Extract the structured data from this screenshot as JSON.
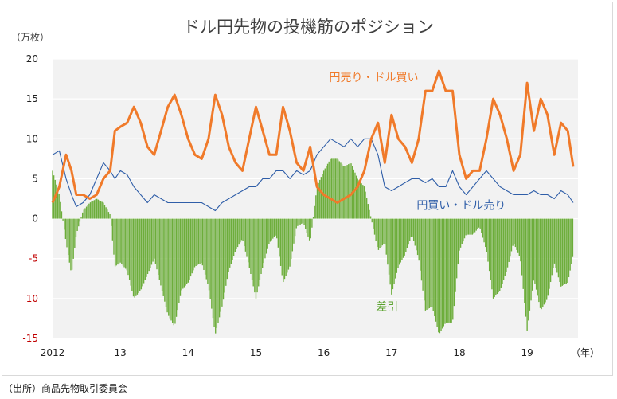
{
  "title": "ドル円先物の投機筋のポジション",
  "unit": "（万枚）",
  "source": "（出所）商品先物取引委員会",
  "colors": {
    "long_yen": "#f07a2a",
    "long_dollar": "#2f5ea8",
    "net": "#6cad3a",
    "plot_bg": "#f2f2f2",
    "grid": "#ffffff",
    "negative_tick": "#c00000"
  },
  "chart_data": {
    "type": "line",
    "title": "ドル円先物の投機筋のポジション",
    "ylabel": "（万枚）",
    "xlabel": "",
    "ylim": [
      -15,
      20
    ],
    "xlim": [
      2012.0,
      2019.75
    ],
    "y_ticks": [
      "20",
      "15",
      "10",
      "5",
      "0",
      "-5",
      "-10",
      "-15"
    ],
    "x_ticks": [
      {
        "year": 2012.0,
        "label": "2012"
      },
      {
        "year": 2013.0,
        "label": "13"
      },
      {
        "year": 2014.0,
        "label": "14"
      },
      {
        "year": 2015.0,
        "label": "15"
      },
      {
        "year": 2016.0,
        "label": "16"
      },
      {
        "year": 2017.0,
        "label": "17"
      },
      {
        "year": 2018.0,
        "label": "18"
      },
      {
        "year": 2019.0,
        "label": "19"
      }
    ],
    "x_unit_label": "（年）",
    "series": [
      {
        "name": "円売り・ドル買い",
        "style": "line",
        "x": [
          2012.0,
          2012.1,
          2012.2,
          2012.28,
          2012.35,
          2012.45,
          2012.55,
          2012.65,
          2012.75,
          2012.85,
          2012.92,
          2013.0,
          2013.1,
          2013.2,
          2013.3,
          2013.4,
          2013.5,
          2013.6,
          2013.7,
          2013.8,
          2013.9,
          2014.0,
          2014.1,
          2014.2,
          2014.3,
          2014.4,
          2014.5,
          2014.6,
          2014.7,
          2014.8,
          2014.9,
          2015.0,
          2015.1,
          2015.2,
          2015.3,
          2015.4,
          2015.5,
          2015.6,
          2015.7,
          2015.8,
          2015.9,
          2016.0,
          2016.1,
          2016.2,
          2016.3,
          2016.4,
          2016.5,
          2016.6,
          2016.7,
          2016.8,
          2016.9,
          2017.0,
          2017.1,
          2017.2,
          2017.3,
          2017.4,
          2017.5,
          2017.6,
          2017.7,
          2017.8,
          2017.9,
          2018.0,
          2018.1,
          2018.2,
          2018.3,
          2018.4,
          2018.5,
          2018.6,
          2018.7,
          2018.8,
          2018.9,
          2019.0,
          2019.1,
          2019.2,
          2019.3,
          2019.4,
          2019.5,
          2019.6,
          2019.68
        ],
        "values": [
          2,
          4,
          8,
          6,
          3,
          3,
          2.5,
          3,
          5,
          6,
          11,
          11.5,
          12,
          14,
          12,
          9,
          8,
          11,
          14,
          15.5,
          13,
          10,
          8,
          7.5,
          10,
          15.5,
          13,
          9,
          7,
          6,
          10,
          14,
          11,
          8,
          8,
          14,
          11,
          7,
          6,
          9,
          4,
          3,
          2.5,
          2,
          2.5,
          3,
          4,
          6,
          10,
          12,
          7,
          13,
          10,
          9,
          7,
          10,
          16,
          16,
          18.5,
          16,
          16,
          8,
          5,
          6,
          6,
          10,
          15,
          13,
          10,
          6,
          8,
          17,
          11,
          15,
          13,
          8,
          12,
          11,
          6.5
        ]
      },
      {
        "name": "円買い・ドル売り",
        "style": "line",
        "x": [
          2012.0,
          2012.1,
          2012.2,
          2012.28,
          2012.35,
          2012.45,
          2012.55,
          2012.65,
          2012.75,
          2012.85,
          2012.92,
          2013.0,
          2013.1,
          2013.2,
          2013.3,
          2013.4,
          2013.5,
          2013.6,
          2013.7,
          2013.8,
          2013.9,
          2014.0,
          2014.1,
          2014.2,
          2014.3,
          2014.4,
          2014.5,
          2014.6,
          2014.7,
          2014.8,
          2014.9,
          2015.0,
          2015.1,
          2015.2,
          2015.3,
          2015.4,
          2015.5,
          2015.6,
          2015.7,
          2015.8,
          2015.9,
          2016.0,
          2016.1,
          2016.2,
          2016.3,
          2016.4,
          2016.5,
          2016.6,
          2016.7,
          2016.8,
          2016.9,
          2017.0,
          2017.1,
          2017.2,
          2017.3,
          2017.4,
          2017.5,
          2017.6,
          2017.7,
          2017.8,
          2017.9,
          2018.0,
          2018.1,
          2018.2,
          2018.3,
          2018.4,
          2018.5,
          2018.6,
          2018.7,
          2018.8,
          2018.9,
          2019.0,
          2019.1,
          2019.2,
          2019.3,
          2019.4,
          2019.5,
          2019.6,
          2019.68
        ],
        "values": [
          8,
          8.5,
          5,
          3,
          1.5,
          2,
          3,
          5,
          7,
          6,
          5,
          6,
          5.5,
          4,
          3,
          2,
          3,
          2.5,
          2,
          2,
          2,
          2,
          2,
          2,
          1.5,
          1,
          2,
          2.5,
          3,
          3.5,
          4,
          4,
          5,
          5,
          6,
          6,
          5,
          6,
          5.5,
          6,
          8,
          9,
          10,
          9.5,
          9,
          10,
          9,
          10,
          10,
          8,
          4,
          3.5,
          4,
          4.5,
          5,
          5,
          4.5,
          5,
          4,
          4,
          6,
          4,
          3,
          4,
          5,
          6,
          5,
          4,
          3.5,
          3,
          3,
          3,
          3.5,
          3,
          3,
          2.5,
          3.5,
          3,
          2
        ]
      },
      {
        "name": "差引",
        "style": "bar",
        "x": [
          2012.0,
          2012.1,
          2012.2,
          2012.28,
          2012.35,
          2012.45,
          2012.55,
          2012.65,
          2012.75,
          2012.85,
          2012.92,
          2013.0,
          2013.1,
          2013.2,
          2013.3,
          2013.4,
          2013.5,
          2013.6,
          2013.7,
          2013.8,
          2013.9,
          2014.0,
          2014.1,
          2014.2,
          2014.3,
          2014.4,
          2014.5,
          2014.6,
          2014.7,
          2014.8,
          2014.9,
          2015.0,
          2015.1,
          2015.2,
          2015.3,
          2015.4,
          2015.5,
          2015.6,
          2015.7,
          2015.8,
          2015.9,
          2016.0,
          2016.1,
          2016.2,
          2016.3,
          2016.4,
          2016.5,
          2016.6,
          2016.7,
          2016.8,
          2016.9,
          2017.0,
          2017.1,
          2017.2,
          2017.3,
          2017.4,
          2017.5,
          2017.6,
          2017.7,
          2017.8,
          2017.9,
          2018.0,
          2018.1,
          2018.2,
          2018.3,
          2018.4,
          2018.5,
          2018.6,
          2018.7,
          2018.8,
          2018.9,
          2019.0,
          2019.1,
          2019.2,
          2019.3,
          2019.4,
          2019.5,
          2019.6,
          2019.68
        ],
        "values": [
          6,
          3,
          -3,
          -7,
          -2,
          1,
          2,
          2.5,
          2,
          0.5,
          -6,
          -5.5,
          -6.5,
          -10,
          -9,
          -7,
          -5,
          -8.5,
          -12,
          -13.5,
          -9,
          -8,
          -6,
          -5.5,
          -8.5,
          -14.5,
          -11,
          -6.5,
          -4,
          -2.5,
          -6,
          -10,
          -6,
          -3,
          -2,
          -8,
          -6,
          -1,
          -0.5,
          -3,
          4,
          6,
          7.5,
          7.5,
          6.5,
          7,
          5,
          4,
          0,
          -4,
          -3,
          -9.5,
          -6,
          -4.5,
          -2,
          -5,
          -11.5,
          -11,
          -14.5,
          -13,
          -13,
          -4,
          -2,
          -2,
          -1,
          -4,
          -10,
          -9,
          -6.5,
          -3,
          -5,
          -14,
          -7.5,
          -11.5,
          -10,
          -5.5,
          -8.5,
          -8,
          -4.5
        ]
      }
    ],
    "annotations": [
      {
        "text": "円売り・ドル買い",
        "series": 0
      },
      {
        "text": "円買い・ドル売り",
        "series": 1
      },
      {
        "text": "差引",
        "series": 2
      }
    ]
  }
}
